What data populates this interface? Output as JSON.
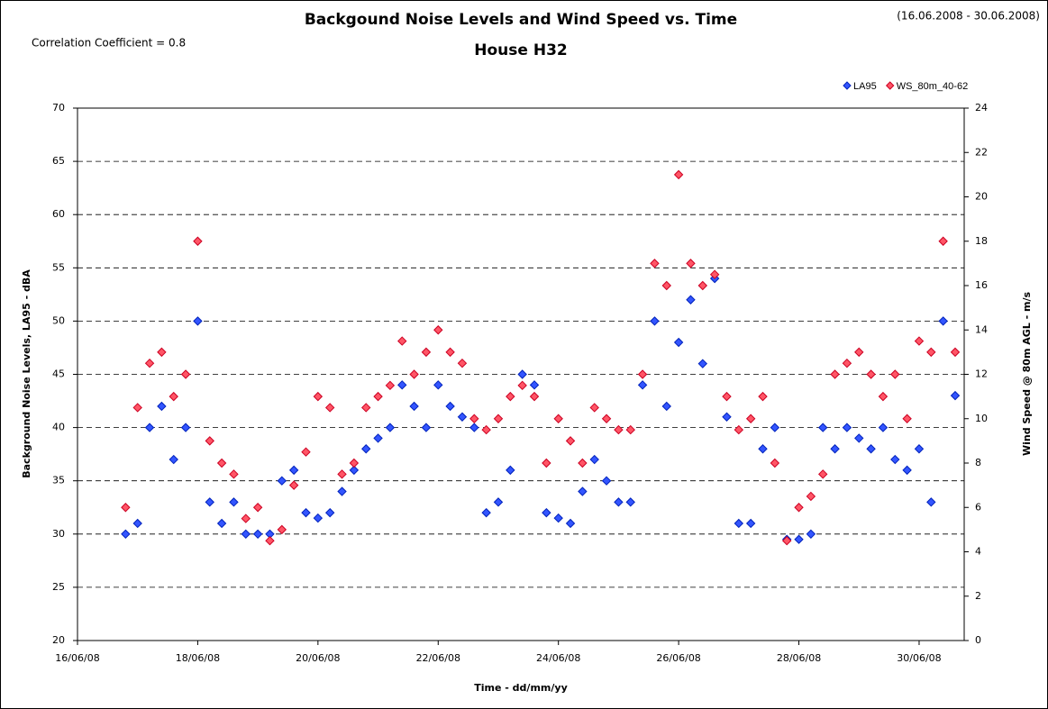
{
  "chart_data": {
    "type": "scatter",
    "title": "Backgound Noise Levels and Wind Speed vs. Time",
    "subtitle": "House H32",
    "annotations": [
      "(16.06.2008 - 30.06.2008)",
      "Correlation Coefficient = 0.8"
    ],
    "x_label": "Time - dd/mm/yy",
    "y_label": "Background Noise Levels, LA95 - dBA",
    "y2_label": "Wind Speed @ 80m AGL - m/s",
    "xlim": [
      16,
      30.75
    ],
    "xticks": [
      {
        "value": 16,
        "label": "16/06/08"
      },
      {
        "value": 18,
        "label": "18/06/08"
      },
      {
        "value": 20,
        "label": "20/06/08"
      },
      {
        "value": 22,
        "label": "22/06/08"
      },
      {
        "value": 24,
        "label": "24/06/08"
      },
      {
        "value": 26,
        "label": "26/06/08"
      },
      {
        "value": 28,
        "label": "28/06/08"
      },
      {
        "value": 30,
        "label": "30/06/08"
      }
    ],
    "ylim": [
      20,
      70
    ],
    "yticks": [
      20,
      25,
      30,
      35,
      40,
      45,
      50,
      55,
      60,
      65,
      70
    ],
    "y2lim": [
      0,
      24
    ],
    "y2ticks": [
      0,
      2,
      4,
      6,
      8,
      10,
      12,
      14,
      16,
      18,
      20,
      22,
      24
    ],
    "grid": true,
    "legend": "top-right",
    "x": [
      16.8,
      17,
      17.2,
      17.4,
      17.6,
      17.8,
      18,
      18.2,
      18.4,
      18.6,
      18.8,
      19,
      19.2,
      19.4,
      19.6,
      19.8,
      20,
      20.2,
      20.4,
      20.6,
      20.8,
      21,
      21.2,
      21.4,
      21.6,
      21.8,
      22,
      22.2,
      22.4,
      22.6,
      22.8,
      23,
      23.2,
      23.4,
      23.6,
      23.8,
      24,
      24.2,
      24.4,
      24.6,
      24.8,
      25,
      25.2,
      25.4,
      25.6,
      25.8,
      26,
      26.2,
      26.4,
      26.6,
      26.8,
      27,
      27.2,
      27.4,
      27.6,
      27.8,
      28,
      28.2,
      28.4,
      28.6,
      28.8,
      29,
      29.2,
      29.4,
      29.6,
      29.8,
      30,
      30.2,
      30.4,
      30.6
    ],
    "series": [
      {
        "name": "LA95",
        "color": "#3355ff",
        "values": [
          30,
          31,
          40,
          42,
          37,
          40,
          50,
          33,
          31,
          33,
          30,
          30,
          30,
          35,
          36,
          32,
          31.5,
          32,
          34,
          36,
          38,
          39,
          40,
          44,
          42,
          40,
          44,
          42,
          41,
          40,
          32,
          33,
          36,
          45,
          44,
          32,
          31.5,
          31,
          34,
          37,
          35,
          33,
          33,
          44,
          50,
          42,
          48,
          52,
          46,
          54,
          41,
          31,
          31,
          38,
          40,
          29.5,
          29.5,
          30,
          40,
          38,
          40,
          39,
          38,
          40,
          37,
          36,
          38,
          33,
          50,
          43
        ]
      },
      {
        "name": "WS_80m_40-62",
        "color": "#ff5566",
        "axis": "y2",
        "values": [
          6,
          10.5,
          12.5,
          13,
          11,
          12,
          18,
          9,
          8,
          7.5,
          5.5,
          6,
          4.5,
          5,
          7,
          8.5,
          11,
          10.5,
          7.5,
          8,
          10.5,
          11,
          11.5,
          13.5,
          12,
          13,
          14,
          13,
          12.5,
          10,
          9.5,
          10,
          11,
          11.5,
          11,
          8,
          10,
          9,
          8,
          10.5,
          10,
          9.5,
          9.5,
          12,
          17,
          16,
          21,
          17,
          16,
          16.5,
          11,
          9.5,
          10,
          11,
          8,
          4.5,
          6,
          6.5,
          7.5,
          12,
          12.5,
          13,
          12,
          11,
          12,
          10,
          13.5,
          13,
          18,
          13
        ]
      }
    ]
  }
}
